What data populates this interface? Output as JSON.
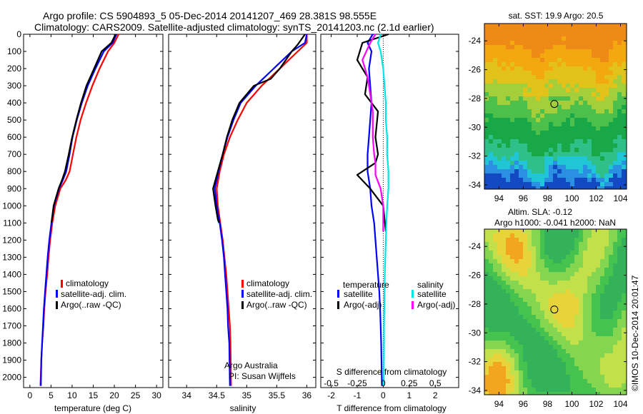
{
  "header": {
    "line1": "Argo profile: CS 5904893_5 05-Dec-2014 20141207_469 28.381S 98.555E",
    "line2": "Climatology: CARS2009. Satellite-adjusted climatology: synTS_20141203.nc (2.1d earlier)"
  },
  "colors": {
    "climatology": "#ff0000",
    "satellite": "#0000ff",
    "argo": "#000000",
    "salinity_satellite": "#00e5e5",
    "salinity_argo": "#ff00ff"
  },
  "depth_ticks": [
    "0",
    "100",
    "200",
    "300",
    "400",
    "500",
    "600",
    "700",
    "800",
    "900",
    "1000",
    "1100",
    "1200",
    "1300",
    "1400",
    "1500",
    "1600",
    "1700",
    "1800",
    "1900",
    "2000"
  ],
  "chart_data": [
    {
      "id": "temperature",
      "type": "line",
      "xlabel": "temperature (deg C)",
      "ylabel": "",
      "xlim": [
        -1.5,
        31.5
      ],
      "ylim": [
        2060,
        0
      ],
      "xticks": [
        "0",
        "5",
        "10",
        "15",
        "20",
        "25",
        "30"
      ],
      "xtick_values": [
        0,
        5,
        10,
        15,
        20,
        25,
        30
      ],
      "legend": {
        "position": "lower-middle",
        "entries": [
          "climatology",
          "satellite-adj. clim.",
          "Argo(..raw -QC)"
        ]
      },
      "series": [
        {
          "name": "climatology",
          "color_key": "climatology",
          "x": [
            21.0,
            20.0,
            18.5,
            16.5,
            14.8,
            13.3,
            12.0,
            11.0,
            10.2,
            9.4,
            8.5,
            7.2,
            6.0,
            5.3,
            4.8,
            4.4,
            4.1,
            3.7,
            3.4,
            3.2,
            2.9,
            2.7,
            2.5
          ],
          "y": [
            0,
            50,
            100,
            200,
            300,
            400,
            500,
            600,
            700,
            800,
            850,
            900,
            1000,
            1100,
            1200,
            1300,
            1400,
            1500,
            1600,
            1700,
            1800,
            1900,
            2050
          ]
        },
        {
          "name": "satellite-adj. clim.",
          "color_key": "satellite",
          "x": [
            20.5,
            19.6,
            17.5,
            15.5,
            13.7,
            12.3,
            11.1,
            10.1,
            9.4,
            8.6,
            7.8,
            6.9,
            5.7,
            5.1,
            4.6,
            4.2,
            3.9,
            3.6,
            3.3,
            3.1,
            2.9,
            2.7,
            2.6
          ],
          "y": [
            0,
            50,
            100,
            200,
            300,
            400,
            500,
            600,
            700,
            800,
            850,
            900,
            1000,
            1100,
            1200,
            1300,
            1400,
            1500,
            1600,
            1700,
            1800,
            1900,
            2050
          ]
        },
        {
          "name": "Argo(..raw -QC)",
          "color_key": "argo",
          "x": [
            20.3,
            19.3,
            17.0,
            15.2,
            13.4,
            12.1,
            11.0,
            10.0,
            9.2,
            8.3,
            7.6,
            6.8,
            5.6,
            5.1
          ],
          "y": [
            0,
            50,
            100,
            200,
            300,
            400,
            500,
            600,
            700,
            800,
            850,
            900,
            1000,
            1100
          ]
        }
      ]
    },
    {
      "id": "salinity",
      "type": "line",
      "xlabel": "salinity",
      "ylabel": "",
      "xlim": [
        33.7,
        36.15
      ],
      "ylim": [
        2060,
        0
      ],
      "xticks": [
        "34",
        "34.5",
        "35",
        "35.5",
        "36"
      ],
      "xtick_values": [
        34,
        34.5,
        35,
        35.5,
        36
      ],
      "legend": {
        "position": "lower-middle",
        "entries": [
          "climatology",
          "satellite-adj. clim.",
          "Argo(..raw -QC)"
        ]
      },
      "annotation": [
        "Argo Australia",
        "PI: Susan Wijffels"
      ],
      "series": [
        {
          "name": "climatology",
          "color_key": "climatology",
          "x": [
            36.0,
            36.0,
            35.85,
            35.55,
            35.25,
            35.0,
            34.85,
            34.72,
            34.62,
            34.55,
            34.5,
            34.52,
            34.56,
            34.6,
            34.63,
            34.66,
            34.68,
            34.7,
            34.72,
            34.73,
            34.74
          ],
          "y": [
            0,
            50,
            100,
            200,
            300,
            400,
            500,
            600,
            700,
            800,
            900,
            1000,
            1100,
            1200,
            1300,
            1400,
            1500,
            1600,
            1700,
            1800,
            2050
          ]
        },
        {
          "name": "satellite-adj. clim.",
          "color_key": "satellite",
          "x": [
            36.0,
            35.97,
            35.75,
            35.45,
            35.15,
            34.9,
            34.78,
            34.68,
            34.6,
            34.53,
            34.47,
            34.5,
            34.55,
            34.59,
            34.62,
            34.64,
            34.66,
            34.68,
            34.69,
            34.71,
            34.72
          ],
          "y": [
            0,
            50,
            100,
            200,
            300,
            400,
            500,
            600,
            700,
            800,
            900,
            1000,
            1100,
            1200,
            1300,
            1400,
            1500,
            1600,
            1700,
            1800,
            2050
          ]
        },
        {
          "name": "Argo(..raw -QC)",
          "color_key": "argo",
          "x": [
            35.97,
            35.85,
            35.75,
            35.55,
            35.4,
            35.12,
            34.88,
            34.76,
            34.67,
            34.6,
            34.52,
            34.44,
            34.48,
            34.52,
            34.54
          ],
          "y": [
            0,
            60,
            100,
            200,
            260,
            300,
            400,
            500,
            600,
            700,
            800,
            900,
            1000,
            1080,
            1100
          ]
        }
      ]
    },
    {
      "id": "difference",
      "type": "line",
      "xlabel": "T difference from climatology",
      "top_label": "S difference from climatology",
      "xlim": [
        -2.4,
        2.9
      ],
      "ylim": [
        2060,
        0
      ],
      "xticks": [
        "-2",
        "-1",
        "0",
        "1",
        "2"
      ],
      "xtick_values": [
        -2,
        -1,
        0,
        1,
        2
      ],
      "sticks": [
        "-0.5",
        "-0.25",
        "0",
        "0.25",
        "0.5"
      ],
      "stick_values": [
        -2,
        -1,
        0,
        1,
        2
      ],
      "legend": {
        "position": "lower-middle",
        "temperature_title": "temperature",
        "salinity_title": "salinity",
        "entries": [
          "satellite",
          "Argo(-adj)",
          "satellite",
          "Argo(-adj)"
        ]
      },
      "series": [
        {
          "name": "temperature satellite",
          "color_key": "satellite",
          "x": [
            -0.4,
            -0.6,
            -0.45,
            -0.55,
            -0.5,
            -0.45,
            -0.5,
            -0.55,
            -0.6,
            -0.6,
            -0.5,
            -0.45,
            -0.35,
            -0.3,
            -0.25,
            -0.2,
            -0.15,
            -0.12,
            -0.1,
            -0.08,
            -0.05
          ],
          "y": [
            0,
            50,
            100,
            200,
            300,
            400,
            500,
            600,
            700,
            800,
            900,
            1000,
            1100,
            1200,
            1300,
            1400,
            1500,
            1600,
            1700,
            1800,
            2050
          ]
        },
        {
          "name": "temperature Argo(-adj)",
          "color_key": "argo",
          "x": [
            0.2,
            -0.8,
            -1.0,
            -0.6,
            -0.7,
            -0.2,
            -0.3,
            -0.2,
            -0.3,
            -1.0,
            -0.5,
            0.0,
            0.1
          ],
          "y": [
            0,
            50,
            150,
            250,
            350,
            450,
            600,
            700,
            750,
            820,
            900,
            1000,
            1150
          ]
        },
        {
          "name": "salinity satellite",
          "color_key": "salinity_satellite",
          "x": [
            -0.1,
            -0.2,
            -0.1,
            0.0,
            0.05,
            0.1,
            0.1,
            0.15,
            0.15,
            0.2,
            0.2,
            0.15,
            0.12,
            0.1,
            0.08,
            0.06,
            0.05,
            0.04,
            0.03,
            0.03,
            0.02
          ],
          "y": [
            0,
            50,
            100,
            200,
            300,
            400,
            500,
            600,
            700,
            800,
            900,
            1000,
            1100,
            1200,
            1300,
            1400,
            1500,
            1600,
            1700,
            1800,
            2050
          ]
        },
        {
          "name": "salinity Argo(-adj)",
          "color_key": "salinity_argo",
          "x": [
            -0.3,
            -0.5,
            -0.8,
            -0.6,
            -0.5,
            -0.4,
            -0.4,
            -0.35,
            -0.3,
            -0.3,
            -0.1,
            0.0,
            0.0
          ],
          "y": [
            0,
            50,
            150,
            250,
            350,
            450,
            600,
            700,
            750,
            820,
            900,
            1000,
            1150
          ]
        }
      ]
    },
    {
      "id": "sst_map",
      "type": "heatmap",
      "title": "sat. SST: 19.9 Argo: 20.5",
      "xticks": [
        "94",
        "96",
        "98",
        "100",
        "102",
        "104"
      ],
      "xtick_values": [
        94,
        96,
        98,
        100,
        102,
        104
      ],
      "yticks": [
        "-24",
        "-26",
        "-28",
        "-30",
        "-32",
        "-34"
      ],
      "ytick_values": [
        -24,
        -26,
        -28,
        -30,
        -32,
        -34
      ],
      "xlim": [
        92.8,
        104.5
      ],
      "ylim": [
        -34.3,
        -22.8
      ],
      "marker": {
        "lon": 98.555,
        "lat": -28.381
      }
    },
    {
      "id": "sla_map",
      "type": "heatmap",
      "title_lines": [
        "Altim. SLA: -0.12",
        "Argo h1000: -0.041 h2000: NaN"
      ],
      "xticks": [
        "94",
        "96",
        "98",
        "100",
        "102",
        "104"
      ],
      "xtick_values": [
        94,
        96,
        98,
        100,
        102,
        104
      ],
      "yticks": [
        "-24",
        "-26",
        "-28",
        "-30",
        "-32",
        "-34"
      ],
      "ytick_values": [
        -24,
        -26,
        -28,
        -30,
        -32,
        -34
      ],
      "xlim": [
        92.8,
        104.5
      ],
      "ylim": [
        -34.3,
        -22.8
      ],
      "marker": {
        "lon": 98.555,
        "lat": -28.381
      },
      "side_label": "©IMOS 10-Dec-2014 20:01:47"
    }
  ]
}
